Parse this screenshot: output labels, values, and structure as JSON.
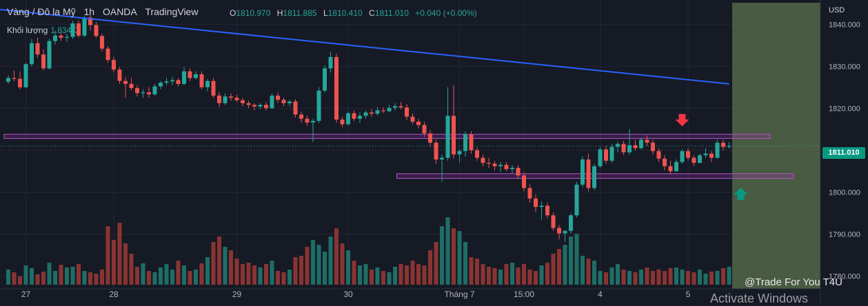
{
  "header": {
    "symbol": "Vàng / Đô la Mỹ",
    "interval": "1h",
    "broker": "OANDA",
    "platform": "TradingView"
  },
  "ohlc": {
    "o_label": "O",
    "o": "1810.970",
    "h_label": "H",
    "h": "1811.885",
    "l_label": "L",
    "l": "1810.410",
    "c_label": "C",
    "c": "1811.010",
    "change": "+0.040 (+0.00%)"
  },
  "volume": {
    "label": "Khối lượng",
    "value": "1.834K"
  },
  "price_axis": {
    "currency": "USD",
    "current_price": "1811.010"
  },
  "watermark": "@Trade For You T4U",
  "os_overlay": "Activate Windows",
  "colors": {
    "background": "#161a25",
    "up": "#26a69a",
    "down": "#ef5350",
    "trendline": "#2962ff",
    "zone": "#9c27b0",
    "projection": "#4c5f43",
    "arrow_down": "#f23645",
    "arrow_up": "#089981"
  },
  "chart_data": {
    "type": "candlestick",
    "y_ticks": [
      "1840.000",
      "1830.000",
      "1820.000",
      "1810.000",
      "1800.000",
      "1790.000",
      "1780.000"
    ],
    "y_tick_values": [
      1840,
      1830,
      1820,
      1810,
      1800,
      1790,
      1780
    ],
    "ylim": [
      1777,
      1842.5
    ],
    "x_tick_labels": [
      "27",
      "28",
      "29",
      "30",
      "Tháng 7",
      "15:00",
      "4",
      "5"
    ],
    "x_tick_bars": [
      3,
      18,
      39,
      58,
      77,
      88,
      101,
      116
    ],
    "bar_count": 124,
    "candles": [
      [
        1826.3,
        1827.8,
        1825.8,
        1827.2
      ],
      [
        1827.2,
        1829.0,
        1826.4,
        1827.0
      ],
      [
        1827.0,
        1828.8,
        1824.5,
        1825.0
      ],
      [
        1825.0,
        1830.8,
        1824.8,
        1830.5
      ],
      [
        1830.5,
        1836.5,
        1830.0,
        1835.5
      ],
      [
        1835.5,
        1836.8,
        1832.0,
        1832.8
      ],
      [
        1832.8,
        1834.0,
        1829.0,
        1829.5
      ],
      [
        1829.5,
        1836.5,
        1829.2,
        1836.0
      ],
      [
        1836.0,
        1838.5,
        1835.2,
        1837.3
      ],
      [
        1837.3,
        1838.0,
        1836.0,
        1836.8
      ],
      [
        1836.8,
        1837.8,
        1835.8,
        1837.0
      ],
      [
        1837.0,
        1840.8,
        1836.5,
        1840.2
      ],
      [
        1840.2,
        1841.0,
        1836.8,
        1837.3
      ],
      [
        1837.3,
        1842.0,
        1837.0,
        1841.6
      ],
      [
        1841.6,
        1842.2,
        1838.5,
        1839.8
      ],
      [
        1839.8,
        1840.5,
        1836.8,
        1837.2
      ],
      [
        1837.2,
        1837.8,
        1833.5,
        1834.2
      ],
      [
        1834.2,
        1834.8,
        1830.8,
        1831.5
      ],
      [
        1831.5,
        1832.2,
        1828.5,
        1829.2
      ],
      [
        1829.2,
        1829.8,
        1825.8,
        1826.5
      ],
      [
        1826.5,
        1827.5,
        1822.5,
        1825.8
      ],
      [
        1825.8,
        1827.2,
        1824.2,
        1824.8
      ],
      [
        1824.8,
        1825.5,
        1822.8,
        1823.6
      ],
      [
        1823.6,
        1824.5,
        1822.5,
        1823.8
      ],
      [
        1823.8,
        1825.0,
        1822.5,
        1823.3
      ],
      [
        1823.3,
        1825.8,
        1823.0,
        1825.2
      ],
      [
        1825.2,
        1826.5,
        1824.5,
        1826.1
      ],
      [
        1826.1,
        1827.2,
        1825.5,
        1826.4
      ],
      [
        1826.4,
        1827.5,
        1825.5,
        1826.7
      ],
      [
        1826.7,
        1827.2,
        1825.2,
        1825.8
      ],
      [
        1825.8,
        1829.8,
        1825.5,
        1828.8
      ],
      [
        1828.8,
        1829.5,
        1826.5,
        1827.2
      ],
      [
        1827.2,
        1828.8,
        1826.8,
        1828.1
      ],
      [
        1828.1,
        1828.8,
        1824.5,
        1825.0
      ],
      [
        1825.0,
        1827.0,
        1824.0,
        1826.5
      ],
      [
        1826.5,
        1827.2,
        1822.5,
        1823.0
      ],
      [
        1823.0,
        1823.8,
        1820.2,
        1821.2
      ],
      [
        1821.2,
        1823.5,
        1820.8,
        1822.8
      ],
      [
        1822.8,
        1823.5,
        1821.8,
        1822.5
      ],
      [
        1822.5,
        1823.2,
        1821.5,
        1821.9
      ],
      [
        1821.9,
        1822.5,
        1820.5,
        1821.2
      ],
      [
        1821.2,
        1821.8,
        1820.0,
        1820.8
      ],
      [
        1820.8,
        1821.2,
        1819.5,
        1820.4
      ],
      [
        1820.4,
        1821.2,
        1819.8,
        1820.8
      ],
      [
        1820.8,
        1821.5,
        1819.5,
        1820.0
      ],
      [
        1820.0,
        1823.5,
        1819.8,
        1823.0
      ],
      [
        1823.0,
        1823.8,
        1821.2,
        1822.0
      ],
      [
        1822.0,
        1822.5,
        1820.5,
        1821.2
      ],
      [
        1821.2,
        1822.0,
        1820.5,
        1821.6
      ],
      [
        1821.6,
        1822.2,
        1817.8,
        1818.5
      ],
      [
        1818.5,
        1819.2,
        1816.5,
        1817.5
      ],
      [
        1817.5,
        1818.2,
        1815.8,
        1816.6
      ],
      [
        1816.6,
        1817.5,
        1812.0,
        1817.0
      ],
      [
        1817.0,
        1825.0,
        1816.5,
        1824.2
      ],
      [
        1824.2,
        1830.2,
        1823.8,
        1829.5
      ],
      [
        1829.5,
        1833.5,
        1828.5,
        1832.2
      ],
      [
        1832.2,
        1833.0,
        1816.5,
        1817.3
      ],
      [
        1817.3,
        1818.0,
        1815.5,
        1816.2
      ],
      [
        1816.2,
        1819.2,
        1815.8,
        1818.8
      ],
      [
        1818.8,
        1819.5,
        1817.0,
        1817.5
      ],
      [
        1817.5,
        1819.0,
        1816.5,
        1818.2
      ],
      [
        1818.2,
        1819.5,
        1817.5,
        1819.0
      ],
      [
        1819.0,
        1819.8,
        1818.0,
        1818.7
      ],
      [
        1818.7,
        1820.2,
        1818.2,
        1819.5
      ],
      [
        1819.5,
        1820.2,
        1818.8,
        1819.3
      ],
      [
        1819.3,
        1820.8,
        1819.0,
        1820.1
      ],
      [
        1820.1,
        1821.2,
        1819.5,
        1820.5
      ],
      [
        1820.5,
        1821.5,
        1819.8,
        1820.2
      ],
      [
        1820.2,
        1821.0,
        1817.2,
        1818.0
      ],
      [
        1818.0,
        1818.8,
        1816.2,
        1816.8
      ],
      [
        1816.8,
        1817.5,
        1815.2,
        1816.0
      ],
      [
        1816.0,
        1816.8,
        1813.2,
        1814.0
      ],
      [
        1814.0,
        1814.8,
        1810.8,
        1811.8
      ],
      [
        1811.8,
        1812.5,
        1806.8,
        1807.8
      ],
      [
        1807.8,
        1809.0,
        1802.5,
        1808.2
      ],
      [
        1808.2,
        1825.0,
        1807.5,
        1818.2
      ],
      [
        1818.2,
        1825.5,
        1808.0,
        1809.0
      ],
      [
        1809.0,
        1810.2,
        1807.2,
        1809.8
      ],
      [
        1809.8,
        1814.5,
        1808.5,
        1813.8
      ],
      [
        1813.8,
        1814.5,
        1809.2,
        1810.0
      ],
      [
        1810.0,
        1810.8,
        1807.5,
        1808.2
      ],
      [
        1808.2,
        1809.0,
        1806.2,
        1807.0
      ],
      [
        1807.0,
        1808.2,
        1805.8,
        1806.8
      ],
      [
        1806.8,
        1807.5,
        1805.2,
        1806.2
      ],
      [
        1806.2,
        1807.2,
        1804.8,
        1806.5
      ],
      [
        1806.5,
        1807.2,
        1805.0,
        1805.5
      ],
      [
        1805.5,
        1806.5,
        1804.5,
        1805.8
      ],
      [
        1805.8,
        1806.5,
        1803.2,
        1804.0
      ],
      [
        1804.0,
        1804.8,
        1800.2,
        1801.0
      ],
      [
        1801.0,
        1802.0,
        1797.5,
        1798.5
      ],
      [
        1798.5,
        1799.5,
        1795.2,
        1796.5
      ],
      [
        1796.5,
        1797.8,
        1793.5,
        1796.8
      ],
      [
        1796.8,
        1797.5,
        1793.8,
        1794.5
      ],
      [
        1794.5,
        1795.2,
        1790.8,
        1791.5
      ],
      [
        1791.5,
        1792.2,
        1788.8,
        1790.2
      ],
      [
        1790.2,
        1791.0,
        1788.2,
        1790.8
      ],
      [
        1790.8,
        1795.0,
        1790.2,
        1794.5
      ],
      [
        1794.5,
        1802.5,
        1794.0,
        1801.8
      ],
      [
        1801.8,
        1808.5,
        1801.2,
        1807.8
      ],
      [
        1807.8,
        1809.2,
        1800.2,
        1801.0
      ],
      [
        1801.0,
        1806.8,
        1800.5,
        1806.2
      ],
      [
        1806.2,
        1810.8,
        1805.8,
        1810.2
      ],
      [
        1810.2,
        1811.0,
        1806.8,
        1807.5
      ],
      [
        1807.5,
        1811.5,
        1807.0,
        1810.8
      ],
      [
        1810.8,
        1812.0,
        1809.5,
        1811.5
      ],
      [
        1811.5,
        1812.2,
        1808.8,
        1809.5
      ],
      [
        1809.5,
        1815.0,
        1809.0,
        1811.2
      ],
      [
        1811.2,
        1812.5,
        1810.0,
        1810.5
      ],
      [
        1810.5,
        1813.0,
        1810.2,
        1812.5
      ],
      [
        1812.5,
        1813.5,
        1811.0,
        1811.8
      ],
      [
        1811.8,
        1812.5,
        1809.0,
        1809.8
      ],
      [
        1809.8,
        1810.5,
        1807.2,
        1808.0
      ],
      [
        1808.0,
        1808.8,
        1805.2,
        1806.2
      ],
      [
        1806.2,
        1807.5,
        1804.2,
        1805.0
      ],
      [
        1805.0,
        1807.8,
        1804.8,
        1807.2
      ],
      [
        1807.2,
        1810.2,
        1806.8,
        1809.8
      ],
      [
        1809.8,
        1810.5,
        1807.5,
        1808.2
      ],
      [
        1808.2,
        1808.8,
        1806.2,
        1807.0
      ],
      [
        1807.0,
        1809.2,
        1806.8,
        1808.8
      ],
      [
        1808.8,
        1810.5,
        1808.2,
        1809.2
      ],
      [
        1809.2,
        1809.8,
        1807.2,
        1808.2
      ],
      [
        1808.2,
        1812.5,
        1808.0,
        1811.8
      ],
      [
        1811.8,
        1812.5,
        1810.0,
        1810.8
      ],
      [
        1810.8,
        1811.9,
        1810.4,
        1811.0
      ]
    ],
    "volume_relative": [
      0.22,
      0.18,
      0.12,
      0.28,
      0.24,
      0.15,
      0.19,
      0.32,
      0.2,
      0.29,
      0.25,
      0.26,
      0.3,
      0.2,
      0.18,
      0.16,
      0.22,
      0.85,
      0.65,
      0.9,
      0.6,
      0.45,
      0.26,
      0.31,
      0.2,
      0.18,
      0.25,
      0.3,
      0.22,
      0.35,
      0.28,
      0.2,
      0.22,
      0.31,
      0.4,
      0.62,
      0.7,
      0.55,
      0.5,
      0.38,
      0.3,
      0.32,
      0.28,
      0.25,
      0.3,
      0.35,
      0.2,
      0.18,
      0.22,
      0.4,
      0.42,
      0.55,
      0.65,
      0.58,
      0.48,
      0.7,
      0.82,
      0.6,
      0.5,
      0.35,
      0.28,
      0.3,
      0.22,
      0.25,
      0.2,
      0.18,
      0.26,
      0.3,
      0.28,
      0.35,
      0.3,
      0.28,
      0.5,
      0.62,
      0.85,
      0.98,
      0.82,
      0.78,
      0.62,
      0.4,
      0.38,
      0.3,
      0.26,
      0.24,
      0.22,
      0.3,
      0.32,
      0.25,
      0.3,
      0.22,
      0.2,
      0.28,
      0.32,
      0.45,
      0.52,
      0.58,
      0.7,
      0.74,
      0.42,
      0.38,
      0.35,
      0.2,
      0.18,
      0.25,
      0.3,
      0.22,
      0.2,
      0.18,
      0.22,
      0.25,
      0.2,
      0.22,
      0.2,
      0.24,
      0.25,
      0.22,
      0.2,
      0.18,
      0.22,
      0.16,
      0.19,
      0.2,
      0.24,
      0.26
    ],
    "trendline": {
      "from_bar": 0,
      "from_price": 1843.5,
      "to_bar": 123,
      "to_price": 1825.8
    },
    "zones": [
      {
        "from_bar": 0,
        "to_bar": 130,
        "low": 1812.8,
        "high": 1813.8
      },
      {
        "from_bar": 67,
        "to_bar": 134,
        "low": 1803.3,
        "high": 1804.4
      }
    ],
    "projection_from_bar": 124,
    "arrows": [
      {
        "direction": "down",
        "bar": 115,
        "price": 1817
      },
      {
        "direction": "up",
        "bar": 125,
        "price": 1799.8
      }
    ],
    "current_price_line": 1811.01
  }
}
